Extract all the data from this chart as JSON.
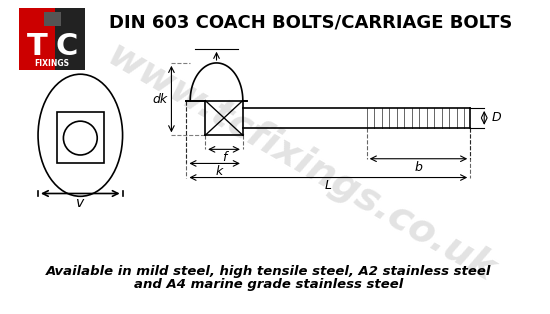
{
  "title": "DIN 603 COACH BOLTS/CARRIAGE BOLTS",
  "subtitle_line1": "Available in mild steel, high tensile steel, A2 stainless steel",
  "subtitle_line2": "and A4 marine grade stainless steel",
  "watermark": "www.tcfixings.co.uk",
  "bg_color": "#ffffff",
  "line_color": "#000000",
  "dim_color": "#444444",
  "watermark_color": "#cccccc",
  "title_fontsize": 13,
  "subtitle_fontsize": 9.5,
  "logo_red": "#cc0000",
  "logo_black": "#222222"
}
